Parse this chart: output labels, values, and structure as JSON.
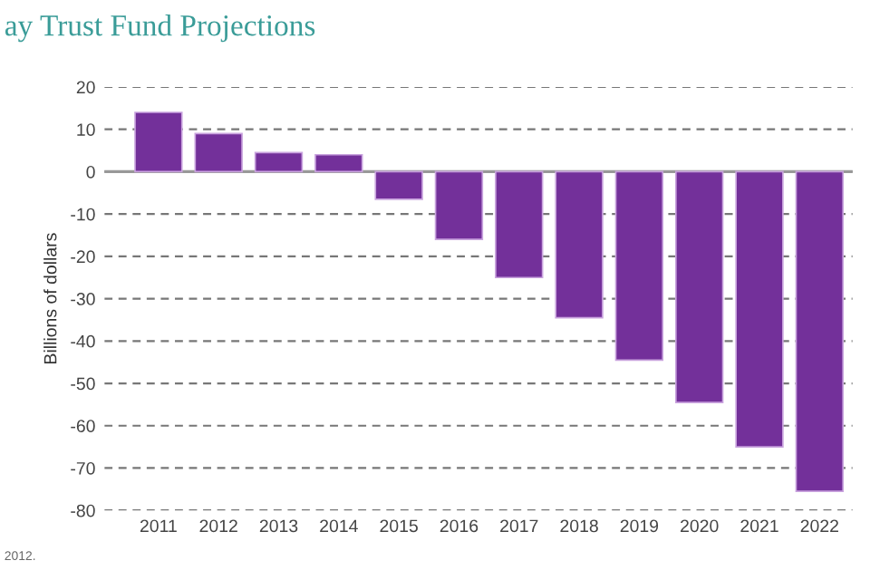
{
  "chart_data": {
    "type": "bar",
    "title": "ay Trust Fund Projections",
    "ylabel": "Billions of dollars",
    "categories": [
      "2011",
      "2012",
      "2013",
      "2014",
      "2015",
      "2016",
      "2017",
      "2018",
      "2019",
      "2020",
      "2021",
      "2022"
    ],
    "values": [
      14,
      9,
      4.5,
      4,
      -6.5,
      -16,
      -25,
      -34.5,
      -44.5,
      -54.5,
      -65,
      -75.5
    ],
    "color": "#73309a",
    "ylim": [
      -80,
      20
    ],
    "yticks": [
      -80,
      -70,
      -60,
      -50,
      -40,
      -30,
      -20,
      -10,
      0,
      10,
      20
    ],
    "grid": "y",
    "annotations": [
      "2012."
    ]
  }
}
